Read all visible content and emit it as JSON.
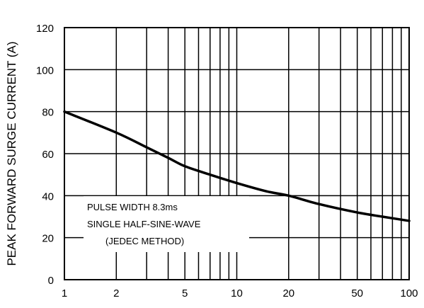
{
  "chart_data": {
    "type": "line",
    "title": "",
    "xlabel": "",
    "ylabel": "PEAK FORWARD SURGE CURRENT (A)",
    "x_scale": "log",
    "xlim": [
      1,
      100
    ],
    "ylim": [
      0,
      120
    ],
    "grid": true,
    "x_ticks": [
      1,
      2,
      5,
      10,
      20,
      50,
      100
    ],
    "x_tick_labels": [
      "1",
      "2",
      "5",
      "10",
      "20",
      "50",
      "100"
    ],
    "y_ticks": [
      0,
      20,
      40,
      60,
      80,
      100,
      120
    ],
    "y_tick_labels": [
      "0",
      "20",
      "40",
      "60",
      "80",
      "100",
      "120"
    ],
    "series": [
      {
        "x": [
          1,
          2,
          3,
          4,
          5,
          7,
          10,
          15,
          20,
          30,
          50,
          70,
          100
        ],
        "y": [
          80,
          70,
          63,
          58,
          54,
          50,
          46,
          42,
          40,
          36,
          32,
          30,
          28
        ]
      }
    ],
    "annotations": [
      "PULSE WIDTH 8.3ms",
      "SINGLE HALF-SINE-WAVE",
      "(JEDEC METHOD)"
    ]
  }
}
